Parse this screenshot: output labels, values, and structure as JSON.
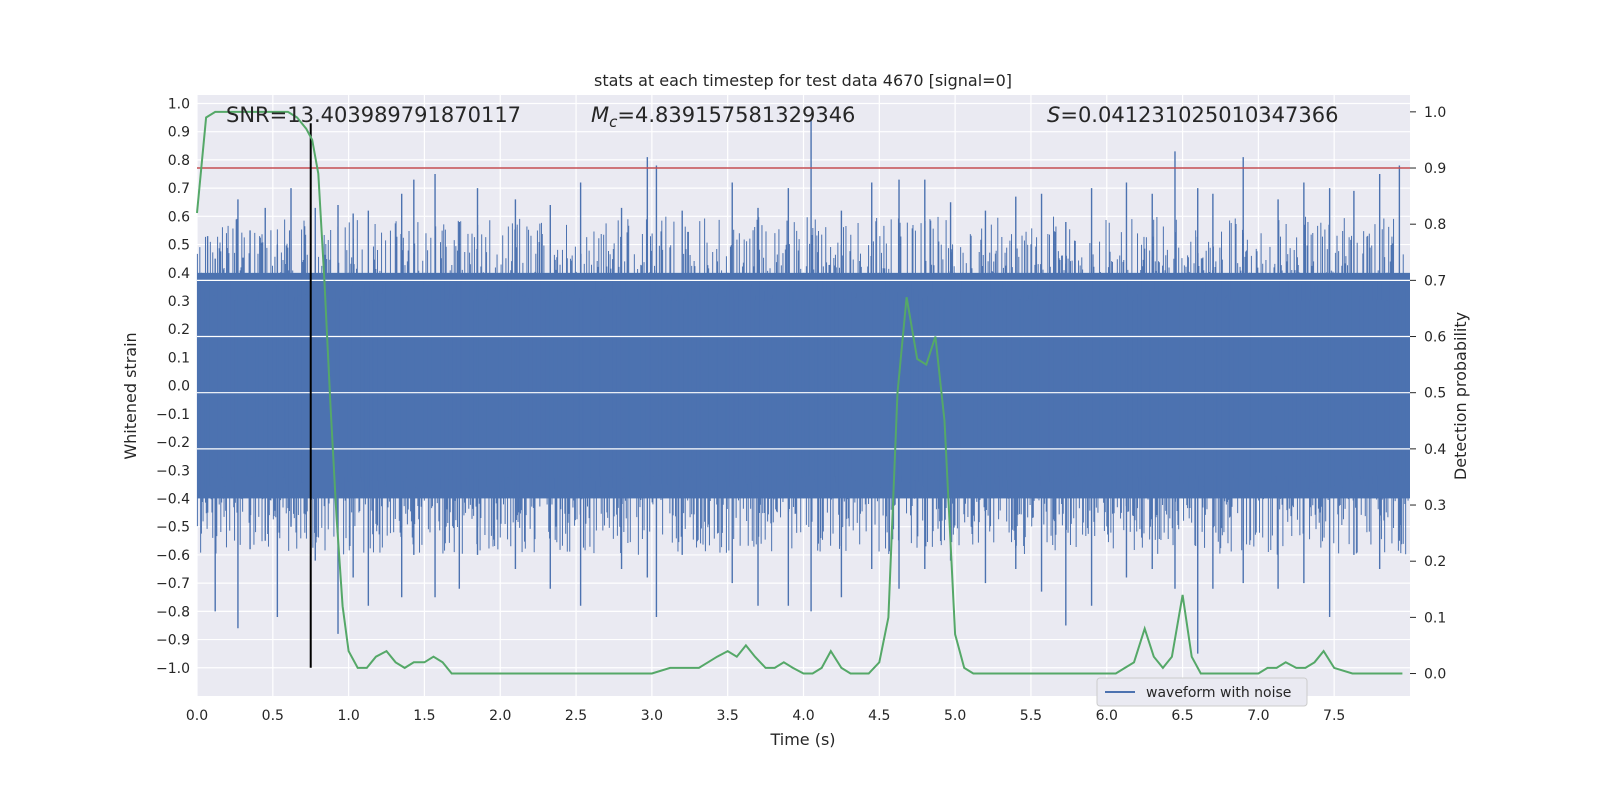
{
  "chart_data": {
    "type": "line",
    "title": "stats at each timestep for test data 4670 [signal=0]",
    "xlabel": "Time (s)",
    "ylabel": "Whitened strain",
    "y2label": "Detection probability",
    "xlim": [
      0.0,
      8.0
    ],
    "ylim": [
      -1.1,
      1.03
    ],
    "y2lim": [
      -0.04,
      1.03
    ],
    "xticks": [
      "0.0",
      "0.5",
      "1.0",
      "1.5",
      "2.0",
      "2.5",
      "3.0",
      "3.5",
      "4.0",
      "4.5",
      "5.0",
      "5.5",
      "6.0",
      "6.5",
      "7.0",
      "7.5"
    ],
    "yticks": [
      "1.0",
      "0.9",
      "0.8",
      "0.7",
      "0.6",
      "0.5",
      "0.4",
      "0.3",
      "0.2",
      "0.1",
      "0.0",
      "−0.1",
      "−0.2",
      "−0.3",
      "−0.4",
      "−0.5",
      "−0.6",
      "−0.7",
      "−0.8",
      "−0.9",
      "−1.0"
    ],
    "y2ticks": [
      "1.0",
      "0.9",
      "0.8",
      "0.7",
      "0.6",
      "0.5",
      "0.4",
      "0.3",
      "0.2",
      "0.1",
      "0.0"
    ],
    "annotations": {
      "snr": "SNR=13.403989791870117",
      "mc_symbol": "M",
      "mc_sub": "c",
      "mc_value": "=4.839157581329346",
      "s_symbol": "S",
      "s_value": "=0.041231025010347366"
    },
    "legend": {
      "label": "waveform with noise",
      "placement": "lower right"
    },
    "threshold": {
      "axis": "right",
      "value": 0.9,
      "color": "#c44e52"
    },
    "vline": {
      "x": 0.75,
      "ymin": -1.0,
      "ymax": 0.93,
      "color": "#000000"
    },
    "colors": {
      "waveform": "#4c72b0",
      "probability": "#55a868",
      "background": "#eaeaf2",
      "grid": "#ffffff"
    },
    "waveform": {
      "name": "waveform with noise",
      "envelope_note_free": true,
      "peaks": [
        [
          0.07,
          0.53,
          -0.45
        ],
        [
          0.12,
          0.45,
          -0.8
        ],
        [
          0.27,
          0.66,
          -0.86
        ],
        [
          0.35,
          0.55,
          -0.58
        ],
        [
          0.45,
          0.63,
          -0.55
        ],
        [
          0.53,
          0.5,
          -0.82
        ],
        [
          0.62,
          0.7,
          -0.5
        ],
        [
          0.78,
          0.63,
          -0.62
        ],
        [
          0.93,
          0.64,
          -0.88
        ],
        [
          1.03,
          0.61,
          -0.68
        ],
        [
          1.13,
          0.62,
          -0.78
        ],
        [
          1.35,
          0.68,
          -0.75
        ],
        [
          1.43,
          0.73,
          -0.6
        ],
        [
          1.57,
          0.75,
          -0.75
        ],
        [
          1.73,
          0.58,
          -0.72
        ],
        [
          1.85,
          0.7,
          -0.6
        ],
        [
          2.1,
          0.66,
          -0.65
        ],
        [
          2.33,
          0.64,
          -0.72
        ],
        [
          2.53,
          0.72,
          -0.78
        ],
        [
          2.8,
          0.63,
          -0.65
        ],
        [
          2.97,
          0.81,
          -0.68
        ],
        [
          3.03,
          0.78,
          -0.82
        ],
        [
          3.2,
          0.62,
          -0.6
        ],
        [
          3.53,
          0.72,
          -0.7
        ],
        [
          3.7,
          0.63,
          -0.78
        ],
        [
          3.9,
          0.7,
          -0.78
        ],
        [
          4.05,
          0.94,
          -0.8
        ],
        [
          4.25,
          0.62,
          -0.75
        ],
        [
          4.45,
          0.72,
          -0.65
        ],
        [
          4.63,
          0.73,
          -0.72
        ],
        [
          4.8,
          0.73,
          -0.65
        ],
        [
          4.97,
          0.65,
          -0.62
        ],
        [
          5.2,
          0.62,
          -0.7
        ],
        [
          5.4,
          0.67,
          -0.65
        ],
        [
          5.57,
          0.68,
          -0.73
        ],
        [
          5.73,
          0.58,
          -0.85
        ],
        [
          5.9,
          0.7,
          -0.78
        ],
        [
          6.13,
          0.72,
          -0.68
        ],
        [
          6.3,
          0.68,
          -0.65
        ],
        [
          6.45,
          0.83,
          -0.72
        ],
        [
          6.6,
          0.7,
          -0.95
        ],
        [
          6.7,
          0.68,
          -0.72
        ],
        [
          6.9,
          0.81,
          -0.7
        ],
        [
          7.13,
          0.66,
          -0.72
        ],
        [
          7.3,
          0.72,
          -0.7
        ],
        [
          7.47,
          0.7,
          -0.82
        ],
        [
          7.63,
          0.69,
          -0.6
        ],
        [
          7.8,
          0.75,
          -0.65
        ],
        [
          7.93,
          0.78,
          -0.55
        ]
      ],
      "core_range": [
        -0.4,
        0.4
      ]
    },
    "probability": {
      "name": "detection probability",
      "x": [
        0.0,
        0.06,
        0.12,
        0.2,
        0.3,
        0.4,
        0.5,
        0.6,
        0.66,
        0.72,
        0.76,
        0.8,
        0.84,
        0.88,
        0.92,
        0.96,
        1.0,
        1.06,
        1.12,
        1.18,
        1.25,
        1.31,
        1.37,
        1.43,
        1.5,
        1.56,
        1.62,
        1.68,
        1.75,
        1.87,
        2.0,
        2.25,
        2.37,
        2.5,
        2.62,
        2.75,
        2.87,
        3.0,
        3.12,
        3.25,
        3.31,
        3.37,
        3.43,
        3.5,
        3.56,
        3.62,
        3.68,
        3.75,
        3.81,
        3.87,
        3.93,
        4.0,
        4.06,
        4.12,
        4.18,
        4.25,
        4.31,
        4.37,
        4.43,
        4.5,
        4.56,
        4.62,
        4.68,
        4.75,
        4.81,
        4.87,
        4.93,
        5.0,
        5.06,
        5.12,
        5.25,
        5.5,
        6.0,
        6.06,
        6.12,
        6.18,
        6.25,
        6.31,
        6.37,
        6.43,
        6.5,
        6.56,
        6.62,
        6.68,
        6.75,
        7.0,
        7.06,
        7.12,
        7.18,
        7.25,
        7.31,
        7.37,
        7.43,
        7.5,
        7.62,
        7.75,
        7.95
      ],
      "y": [
        0.82,
        0.99,
        1.0,
        1.0,
        1.0,
        1.0,
        1.0,
        1.0,
        0.99,
        0.97,
        0.95,
        0.89,
        0.7,
        0.48,
        0.28,
        0.12,
        0.04,
        0.01,
        0.01,
        0.03,
        0.04,
        0.02,
        0.01,
        0.02,
        0.02,
        0.03,
        0.02,
        0.0,
        0.0,
        0.0,
        0.0,
        0.0,
        0.0,
        0.0,
        0.0,
        0.0,
        0.0,
        0.0,
        0.01,
        0.01,
        0.01,
        0.02,
        0.03,
        0.04,
        0.03,
        0.05,
        0.03,
        0.01,
        0.01,
        0.02,
        0.01,
        0.0,
        0.0,
        0.01,
        0.04,
        0.01,
        0.0,
        0.0,
        0.0,
        0.02,
        0.1,
        0.5,
        0.67,
        0.56,
        0.55,
        0.6,
        0.45,
        0.07,
        0.01,
        0.0,
        0.0,
        0.0,
        0.0,
        0.0,
        0.01,
        0.02,
        0.08,
        0.03,
        0.01,
        0.03,
        0.14,
        0.03,
        0.0,
        0.0,
        0.0,
        0.0,
        0.01,
        0.01,
        0.02,
        0.01,
        0.01,
        0.02,
        0.04,
        0.01,
        0.0,
        0.0,
        0.0
      ]
    }
  }
}
